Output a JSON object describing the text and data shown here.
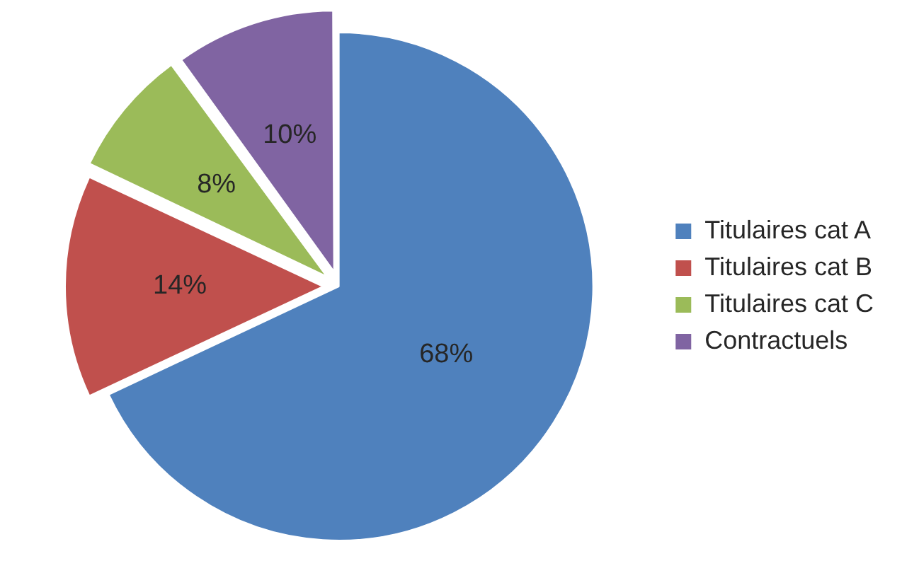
{
  "chart_data": {
    "type": "pie",
    "categories": [
      "Titulaires cat A",
      "Titulaires cat B",
      "Titulaires cat C",
      "Contractuels"
    ],
    "values": [
      68,
      14,
      8,
      10
    ],
    "colors": [
      "#4f81bd",
      "#c0504d",
      "#9bbb59",
      "#8064a2"
    ],
    "value_labels": [
      "68%",
      "14%",
      "8%",
      "10%"
    ],
    "legend": "right"
  }
}
